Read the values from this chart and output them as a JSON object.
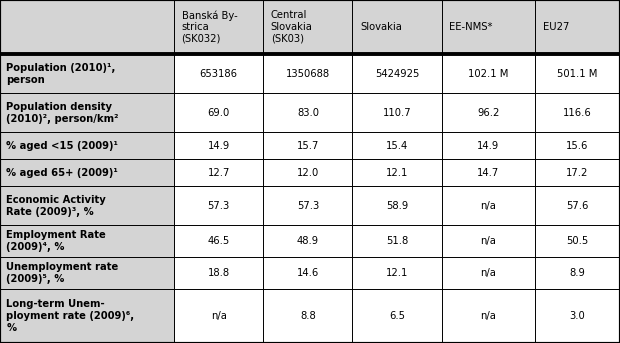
{
  "col_headers": [
    "Banská By-\nstrica\n(SK032)",
    "Central\nSlovakia\n(SK03)",
    "Slovakia",
    "EE-NMS*",
    "EU27"
  ],
  "row_labels": [
    "Population (2010)¹,\nperson",
    "Population density\n(2010)², person/km²",
    "% aged <15 (2009)¹",
    "% aged 65+ (2009)¹",
    "Economic Activity\nRate (2009)³, %",
    "Employment Rate\n(2009)⁴, %",
    "Unemployment rate\n(2009)⁵, %",
    "Long-term Unem-\nployment rate (2009)⁶,\n%"
  ],
  "data": [
    [
      "653186",
      "1350688",
      "5424925",
      "102.1 M",
      "501.1 M"
    ],
    [
      "69.0",
      "83.0",
      "110.7",
      "96.2",
      "116.6"
    ],
    [
      "14.9",
      "15.7",
      "15.4",
      "14.9",
      "15.6"
    ],
    [
      "12.7",
      "12.0",
      "12.1",
      "14.7",
      "17.2"
    ],
    [
      "57.3",
      "57.3",
      "58.9",
      "n/a",
      "57.6"
    ],
    [
      "46.5",
      "48.9",
      "51.8",
      "n/a",
      "50.5"
    ],
    [
      "18.8",
      "14.6",
      "12.1",
      "n/a",
      "8.9"
    ],
    [
      "n/a",
      "8.8",
      "6.5",
      "n/a",
      "3.0"
    ]
  ],
  "header_bg": "#d4d4d4",
  "row_label_bg": "#d4d4d4",
  "data_bg": "#ffffff",
  "fig_width": 6.2,
  "fig_height": 3.43,
  "fontsize": 7.2,
  "col_widths_rel": [
    2.05,
    1.05,
    1.05,
    1.05,
    1.1,
    1.0
  ],
  "row_heights_rel": [
    1.45,
    1.05,
    1.05,
    0.72,
    0.72,
    1.05,
    0.85,
    0.85,
    1.45
  ]
}
